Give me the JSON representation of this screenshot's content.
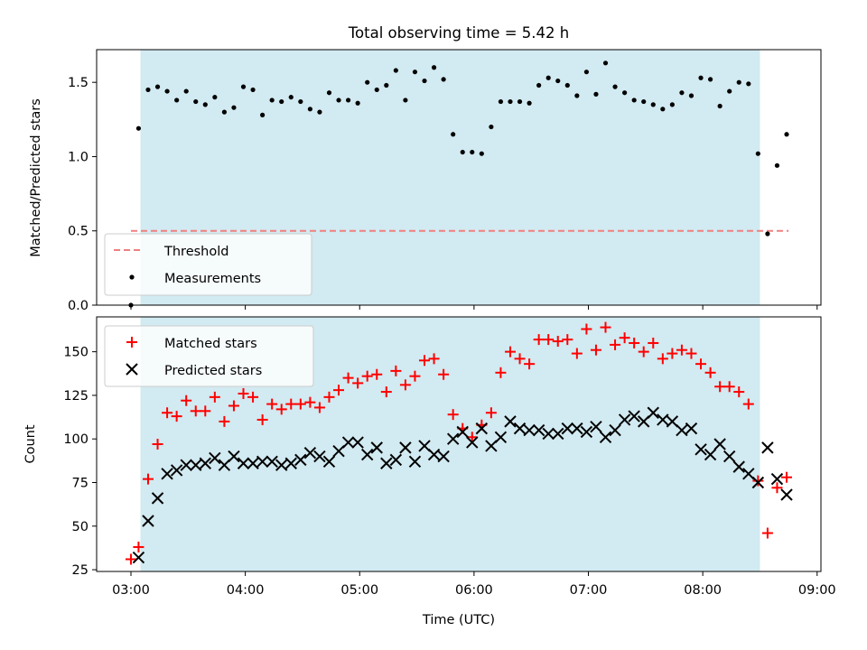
{
  "title": "Total observing time = 5.42 h",
  "colors": {
    "shade": "#add8e6",
    "threshold": "#f08080",
    "measurements": "#000000",
    "matched": "#ff0000",
    "predicted": "#000000"
  },
  "chart_data": [
    {
      "type": "scatter",
      "ylabel": "Matched/Predicted stars",
      "ylim": [
        0,
        1.72
      ],
      "yticks": [
        0.0,
        0.5,
        1.0,
        1.5
      ],
      "ytick_labels": [
        "0.0",
        "0.5",
        "1.0",
        "1.5"
      ],
      "xlim": [
        "02:42",
        "09:02"
      ],
      "shaded_interval": [
        "03:05",
        "08:30"
      ],
      "legend_placement": "lower-left",
      "threshold": {
        "name": "Threshold",
        "y": 0.5,
        "x_range": [
          "03:00",
          "08:45"
        ],
        "style": "dashed"
      },
      "series": [
        {
          "name": "Measurements",
          "x": [
            "03:00",
            "03:04",
            "03:09",
            "03:14",
            "03:19",
            "03:24",
            "03:29",
            "03:34",
            "03:39",
            "03:44",
            "03:49",
            "03:54",
            "03:59",
            "04:04",
            "04:09",
            "04:14",
            "04:19",
            "04:24",
            "04:29",
            "04:34",
            "04:39",
            "04:44",
            "04:49",
            "04:54",
            "04:59",
            "05:04",
            "05:09",
            "05:14",
            "05:19",
            "05:24",
            "05:29",
            "05:34",
            "05:39",
            "05:44",
            "05:49",
            "05:54",
            "05:59",
            "06:04",
            "06:09",
            "06:14",
            "06:19",
            "06:24",
            "06:29",
            "06:34",
            "06:39",
            "06:44",
            "06:49",
            "06:54",
            "06:59",
            "07:04",
            "07:09",
            "07:14",
            "07:19",
            "07:24",
            "07:29",
            "07:34",
            "07:39",
            "07:44",
            "07:49",
            "07:54",
            "07:59",
            "08:04",
            "08:09",
            "08:14",
            "08:19",
            "08:24",
            "08:29",
            "08:34",
            "08:39",
            "08:44"
          ],
          "y": [
            0.0,
            1.19,
            1.45,
            1.47,
            1.44,
            1.38,
            1.44,
            1.37,
            1.35,
            1.4,
            1.3,
            1.33,
            1.47,
            1.45,
            1.28,
            1.38,
            1.37,
            1.4,
            1.37,
            1.32,
            1.3,
            1.43,
            1.38,
            1.38,
            1.36,
            1.5,
            1.45,
            1.48,
            1.58,
            1.38,
            1.57,
            1.51,
            1.6,
            1.52,
            1.15,
            1.03,
            1.03,
            1.02,
            1.2,
            1.37,
            1.37,
            1.37,
            1.36,
            1.48,
            1.53,
            1.51,
            1.48,
            1.41,
            1.57,
            1.42,
            1.63,
            1.47,
            1.43,
            1.38,
            1.37,
            1.35,
            1.32,
            1.35,
            1.43,
            1.41,
            1.53,
            1.52,
            1.34,
            1.44,
            1.5,
            1.49,
            1.02,
            0.48,
            0.94,
            1.15
          ]
        }
      ]
    },
    {
      "type": "scatter",
      "xlabel": "Time (UTC)",
      "ylabel": "Count",
      "ylim": [
        24,
        170
      ],
      "yticks": [
        25,
        50,
        75,
        100,
        125,
        150
      ],
      "ytick_labels": [
        "25",
        "50",
        "75",
        "100",
        "125",
        "150"
      ],
      "xlim": [
        "02:42",
        "09:02"
      ],
      "xticks": [
        "03:00",
        "04:00",
        "05:00",
        "06:00",
        "07:00",
        "08:00",
        "09:00"
      ],
      "shaded_interval": [
        "03:05",
        "08:30"
      ],
      "legend_placement": "upper-left",
      "x": [
        "03:00",
        "03:04",
        "03:09",
        "03:14",
        "03:19",
        "03:24",
        "03:29",
        "03:34",
        "03:39",
        "03:44",
        "03:49",
        "03:54",
        "03:59",
        "04:04",
        "04:09",
        "04:14",
        "04:19",
        "04:24",
        "04:29",
        "04:34",
        "04:39",
        "04:44",
        "04:49",
        "04:54",
        "04:59",
        "05:04",
        "05:09",
        "05:14",
        "05:19",
        "05:24",
        "05:29",
        "05:34",
        "05:39",
        "05:44",
        "05:49",
        "05:54",
        "05:59",
        "06:04",
        "06:09",
        "06:14",
        "06:19",
        "06:24",
        "06:29",
        "06:34",
        "06:39",
        "06:44",
        "06:49",
        "06:54",
        "06:59",
        "07:04",
        "07:09",
        "07:14",
        "07:19",
        "07:24",
        "07:29",
        "07:34",
        "07:39",
        "07:44",
        "07:49",
        "07:54",
        "07:59",
        "08:04",
        "08:09",
        "08:14",
        "08:19",
        "08:24",
        "08:29",
        "08:34",
        "08:39",
        "08:44"
      ],
      "series": [
        {
          "name": "Matched stars",
          "marker": "plus",
          "values": [
            31,
            38,
            77,
            97,
            115,
            113,
            122,
            116,
            116,
            124,
            110,
            119,
            126,
            124,
            111,
            120,
            117,
            120,
            120,
            121,
            118,
            124,
            128,
            135,
            132,
            136,
            137,
            127,
            139,
            131,
            136,
            145,
            146,
            137,
            114,
            106,
            101,
            108,
            115,
            138,
            150,
            146,
            143,
            157,
            157,
            156,
            157,
            149,
            163,
            151,
            164,
            154,
            158,
            155,
            150,
            155,
            146,
            149,
            151,
            149,
            143,
            138,
            130,
            130,
            127,
            120,
            76,
            46,
            72,
            78
          ]
        },
        {
          "name": "Predicted stars",
          "marker": "x",
          "values": [
            null,
            32,
            53,
            66,
            80,
            82,
            85,
            85,
            86,
            89,
            85,
            90,
            86,
            86,
            87,
            87,
            85,
            86,
            88,
            92,
            90,
            87,
            93,
            98,
            98,
            91,
            95,
            86,
            88,
            95,
            87,
            96,
            91,
            90,
            100,
            104,
            98,
            106,
            96,
            101,
            110,
            106,
            105,
            105,
            103,
            103,
            106,
            106,
            104,
            107,
            101,
            105,
            111,
            113,
            110,
            115,
            111,
            110,
            105,
            106,
            94,
            91,
            97,
            90,
            84,
            80,
            75,
            95,
            77,
            68
          ]
        }
      ]
    }
  ]
}
